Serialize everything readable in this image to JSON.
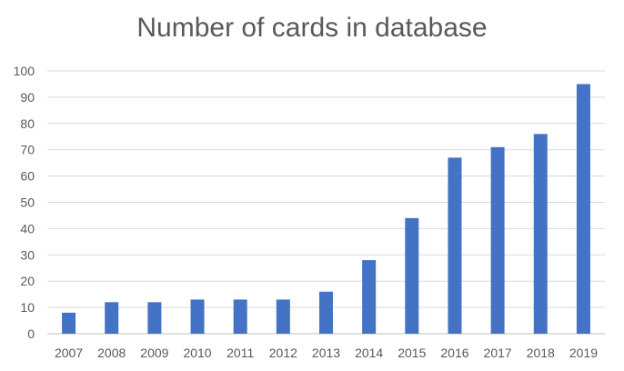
{
  "chart_data": {
    "type": "bar",
    "title": "Number of cards in database",
    "xlabel": "",
    "ylabel": "",
    "categories": [
      "2007",
      "2008",
      "2009",
      "2010",
      "2011",
      "2012",
      "2013",
      "2014",
      "2015",
      "2016",
      "2017",
      "2018",
      "2019"
    ],
    "values": [
      8,
      12,
      12,
      13,
      13,
      13,
      16,
      28,
      44,
      67,
      71,
      76,
      95
    ],
    "ylim": [
      0,
      100
    ],
    "yticks": [
      0,
      10,
      20,
      30,
      40,
      50,
      60,
      70,
      80,
      90,
      100
    ],
    "grid": true,
    "legend": "none",
    "bar_color": "#4472C4",
    "grid_color": "#D9D9D9"
  }
}
